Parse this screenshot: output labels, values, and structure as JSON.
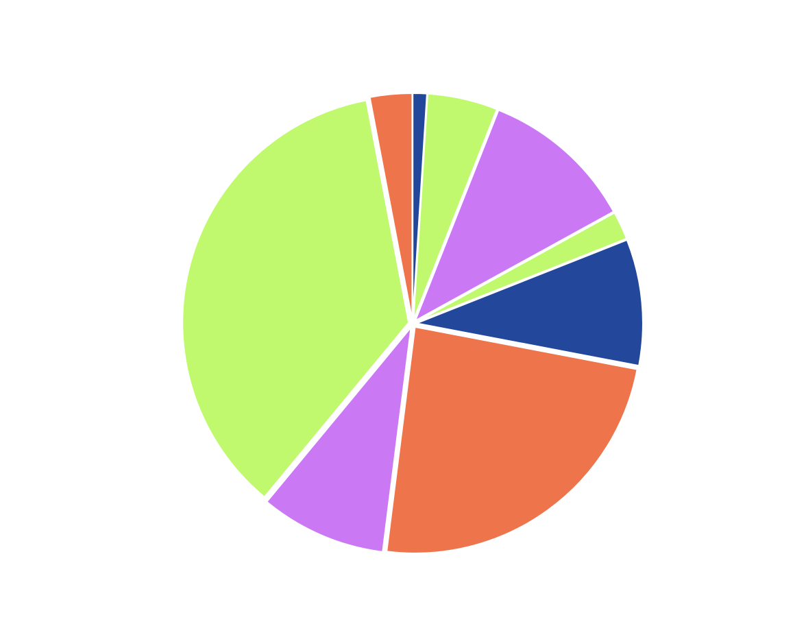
{
  "chart_data": {
    "type": "pie",
    "values": [
      1,
      5,
      11,
      2,
      9,
      24,
      9,
      36,
      3
    ],
    "colors": [
      "#23479b",
      "#c1f96e",
      "#cb78f5",
      "#c1f96e",
      "#23479b",
      "#ee744b",
      "#cb78f5",
      "#c1f96e",
      "#ee744b"
    ]
  }
}
